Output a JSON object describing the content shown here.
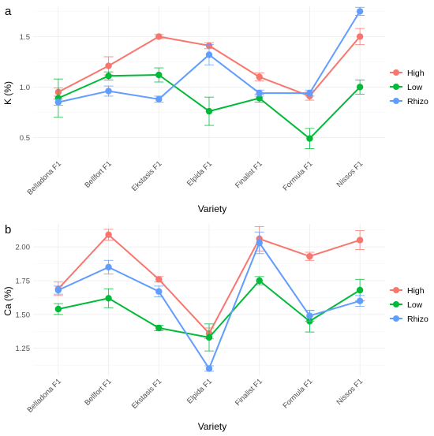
{
  "chart_data": [
    {
      "panel": "a",
      "type": "line",
      "xlabel": "Variety",
      "ylabel": "K (%)",
      "categories": [
        "Belladona F1",
        "Bellfort F1",
        "Ekstasis F1",
        "Elpida F1",
        "Finalist F1",
        "Formula F1",
        "Nissos F1"
      ],
      "ylim": [
        0.3,
        1.8
      ],
      "yticks": [
        0.5,
        1.0,
        1.5
      ],
      "ytick_labels": [
        "0.5",
        "1.0",
        "1.5"
      ],
      "grid": true,
      "legend_position": "right",
      "series": [
        {
          "name": "High",
          "color": "#F8766D",
          "values": [
            0.95,
            1.21,
            1.5,
            1.41,
            1.1,
            0.91,
            1.5
          ],
          "err": [
            0.04,
            0.09,
            0.02,
            0.03,
            0.04,
            0.04,
            0.08
          ]
        },
        {
          "name": "Low",
          "color": "#00BA38",
          "values": [
            0.89,
            1.11,
            1.12,
            0.76,
            0.89,
            0.49,
            1.0
          ],
          "err": [
            0.19,
            0.04,
            0.07,
            0.14,
            0.04,
            0.1,
            0.07
          ]
        },
        {
          "name": "Rhizo",
          "color": "#619CFF",
          "values": [
            0.85,
            0.96,
            0.88,
            1.32,
            0.94,
            0.94,
            1.75
          ],
          "err": [
            0.03,
            0.05,
            0.03,
            0.1,
            0.03,
            0.03,
            0.04
          ]
        }
      ]
    },
    {
      "panel": "b",
      "type": "line",
      "xlabel": "Variety",
      "ylabel": "Ca (%)",
      "categories": [
        "Belladona F1",
        "Bellfort F1",
        "Ekstasis F1",
        "Elpida F1",
        "Finalist F1",
        "Formula F1",
        "Nissos F1"
      ],
      "ylim": [
        1.05,
        2.17
      ],
      "yticks": [
        1.25,
        1.5,
        1.75,
        2.0
      ],
      "ytick_labels": [
        "1.25",
        "1.50",
        "1.75",
        "2.00"
      ],
      "grid": true,
      "legend_position": "right",
      "series": [
        {
          "name": "High",
          "color": "#F8766D",
          "values": [
            1.69,
            2.09,
            1.76,
            1.36,
            2.06,
            1.93,
            2.05
          ],
          "err": [
            0.05,
            0.04,
            0.02,
            0.04,
            0.09,
            0.03,
            0.07
          ]
        },
        {
          "name": "Low",
          "color": "#00BA38",
          "values": [
            1.54,
            1.62,
            1.4,
            1.33,
            1.75,
            1.45,
            1.68
          ],
          "err": [
            0.04,
            0.07,
            0.02,
            0.1,
            0.03,
            0.08,
            0.08
          ]
        },
        {
          "name": "Rhizo",
          "color": "#619CFF",
          "values": [
            1.68,
            1.85,
            1.67,
            1.1,
            2.03,
            1.49,
            1.6
          ],
          "err": [
            0.03,
            0.05,
            0.04,
            0.02,
            0.08,
            0.04,
            0.04
          ]
        }
      ]
    }
  ]
}
